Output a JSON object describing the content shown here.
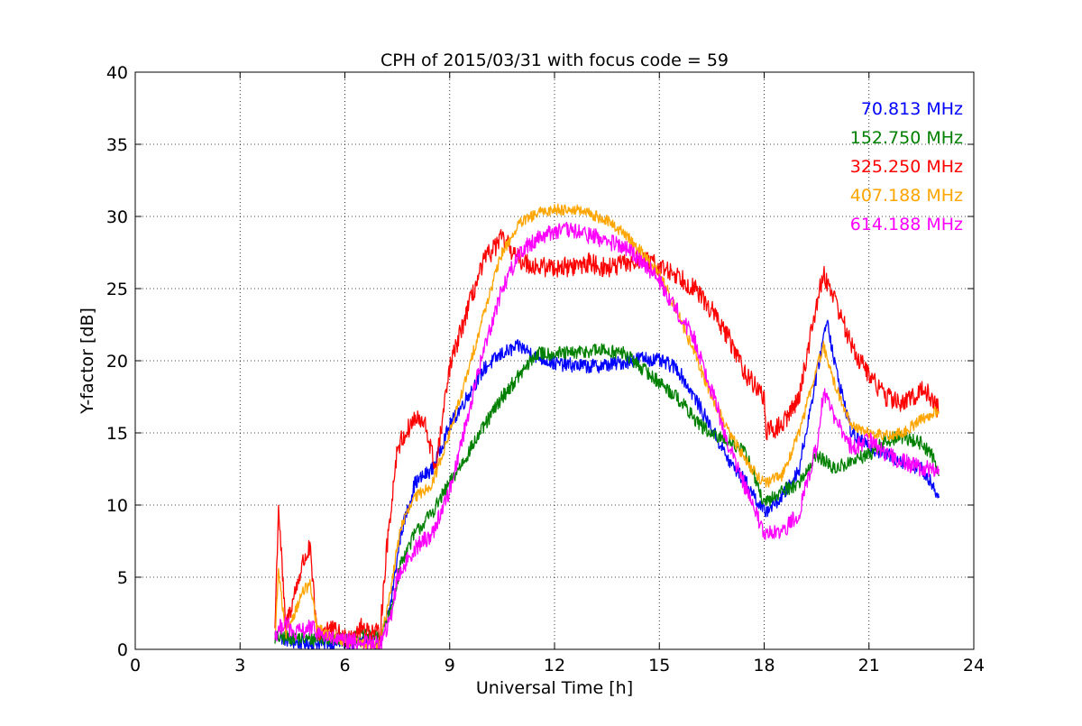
{
  "chart_data": {
    "type": "line",
    "title": "CPH of 2015/03/31 with focus code = 59",
    "xlabel": "Universal Time [h]",
    "ylabel": "Y-factor [dB]",
    "xlim": [
      0,
      24
    ],
    "ylim": [
      0,
      40
    ],
    "xticks": [
      0,
      3,
      6,
      9,
      12,
      15,
      18,
      21,
      24
    ],
    "yticks": [
      0,
      5,
      10,
      15,
      20,
      25,
      30,
      35,
      40
    ],
    "xtick_labels": [
      "0",
      "3",
      "6",
      "9",
      "12",
      "15",
      "18",
      "21",
      "24"
    ],
    "ytick_labels": [
      "0",
      "5",
      "10",
      "15",
      "20",
      "25",
      "30",
      "35",
      "40"
    ],
    "grid": true,
    "legend_position": "top-right",
    "series": [
      {
        "name": "70.813 MHz",
        "color": "#0000ff",
        "noise": 0.5,
        "points": [
          [
            4.0,
            1.0
          ],
          [
            4.5,
            0.5
          ],
          [
            5.0,
            0.4
          ],
          [
            5.5,
            0.5
          ],
          [
            6.0,
            0.4
          ],
          [
            6.5,
            0.6
          ],
          [
            7.0,
            0.3
          ],
          [
            7.3,
            3.0
          ],
          [
            7.6,
            8.0
          ],
          [
            8.0,
            11.5
          ],
          [
            8.5,
            12.5
          ],
          [
            9.0,
            15.5
          ],
          [
            9.5,
            17.5
          ],
          [
            10.0,
            19.5
          ],
          [
            10.5,
            20.5
          ],
          [
            11.0,
            21.0
          ],
          [
            11.5,
            20.3
          ],
          [
            12.0,
            19.8
          ],
          [
            12.5,
            19.7
          ],
          [
            13.0,
            19.6
          ],
          [
            13.5,
            19.7
          ],
          [
            14.0,
            19.9
          ],
          [
            14.5,
            20.2
          ],
          [
            15.0,
            20.0
          ],
          [
            15.5,
            19.5
          ],
          [
            16.0,
            17.5
          ],
          [
            16.5,
            15.3
          ],
          [
            17.0,
            13.0
          ],
          [
            17.5,
            11.5
          ],
          [
            18.0,
            9.5
          ],
          [
            18.5,
            10.5
          ],
          [
            19.0,
            12.5
          ],
          [
            19.5,
            19.0
          ],
          [
            19.8,
            23.0
          ],
          [
            20.0,
            20.0
          ],
          [
            20.5,
            15.0
          ],
          [
            21.0,
            14.0
          ],
          [
            21.5,
            13.5
          ],
          [
            22.0,
            13.0
          ],
          [
            22.5,
            12.5
          ],
          [
            22.8,
            11.5
          ],
          [
            23.0,
            10.5
          ]
        ]
      },
      {
        "name": "152.750 MHz",
        "color": "#008000",
        "noise": 0.5,
        "points": [
          [
            4.0,
            0.8
          ],
          [
            4.5,
            0.8
          ],
          [
            5.0,
            0.7
          ],
          [
            5.5,
            0.8
          ],
          [
            6.0,
            0.6
          ],
          [
            6.5,
            0.9
          ],
          [
            7.0,
            0.8
          ],
          [
            7.3,
            2.5
          ],
          [
            7.6,
            6.0
          ],
          [
            8.0,
            8.0
          ],
          [
            8.5,
            9.5
          ],
          [
            9.0,
            11.5
          ],
          [
            9.5,
            13.5
          ],
          [
            10.0,
            15.5
          ],
          [
            10.5,
            17.5
          ],
          [
            11.0,
            19.0
          ],
          [
            11.5,
            20.5
          ],
          [
            12.0,
            20.5
          ],
          [
            12.5,
            20.5
          ],
          [
            13.0,
            20.7
          ],
          [
            13.5,
            20.7
          ],
          [
            14.0,
            20.5
          ],
          [
            14.5,
            19.5
          ],
          [
            15.0,
            18.5
          ],
          [
            15.5,
            17.5
          ],
          [
            16.0,
            16.0
          ],
          [
            16.5,
            14.8
          ],
          [
            17.0,
            14.5
          ],
          [
            17.5,
            13.5
          ],
          [
            18.0,
            10.0
          ],
          [
            18.5,
            11.0
          ],
          [
            19.0,
            11.5
          ],
          [
            19.5,
            13.5
          ],
          [
            20.0,
            12.5
          ],
          [
            20.5,
            13.0
          ],
          [
            21.0,
            13.5
          ],
          [
            21.5,
            14.5
          ],
          [
            22.0,
            14.7
          ],
          [
            22.5,
            14.3
          ],
          [
            22.8,
            13.5
          ],
          [
            23.0,
            12.0
          ]
        ]
      },
      {
        "name": "325.250 MHz",
        "color": "#ff0000",
        "noise": 0.7,
        "points": [
          [
            4.0,
            1.5
          ],
          [
            4.1,
            10.0
          ],
          [
            4.3,
            1.5
          ],
          [
            4.8,
            6.0
          ],
          [
            5.0,
            7.0
          ],
          [
            5.2,
            1.0
          ],
          [
            5.5,
            1.5
          ],
          [
            6.0,
            0.8
          ],
          [
            6.5,
            1.5
          ],
          [
            7.0,
            1.0
          ],
          [
            7.2,
            7.0
          ],
          [
            7.5,
            14.0
          ],
          [
            8.0,
            16.0
          ],
          [
            8.3,
            15.5
          ],
          [
            8.6,
            12.5
          ],
          [
            9.0,
            19.5
          ],
          [
            9.5,
            23.5
          ],
          [
            10.0,
            27.0
          ],
          [
            10.5,
            28.5
          ],
          [
            11.0,
            27.0
          ],
          [
            11.5,
            26.5
          ],
          [
            12.0,
            26.5
          ],
          [
            12.5,
            26.5
          ],
          [
            13.0,
            26.8
          ],
          [
            13.5,
            26.4
          ],
          [
            14.0,
            26.7
          ],
          [
            14.5,
            27.0
          ],
          [
            15.0,
            26.5
          ],
          [
            15.5,
            26.0
          ],
          [
            16.0,
            25.0
          ],
          [
            16.5,
            23.5
          ],
          [
            17.0,
            21.5
          ],
          [
            17.5,
            19.0
          ],
          [
            18.0,
            17.5
          ],
          [
            18.05,
            15.0
          ],
          [
            18.5,
            15.5
          ],
          [
            19.0,
            17.5
          ],
          [
            19.5,
            24.0
          ],
          [
            19.7,
            26.0
          ],
          [
            20.0,
            24.5
          ],
          [
            20.5,
            21.0
          ],
          [
            21.0,
            19.0
          ],
          [
            21.5,
            17.5
          ],
          [
            22.0,
            17.0
          ],
          [
            22.5,
            18.0
          ],
          [
            22.8,
            17.5
          ],
          [
            23.0,
            16.5
          ]
        ]
      },
      {
        "name": "407.188 MHz",
        "color": "#ffa500",
        "noise": 0.4,
        "points": [
          [
            4.0,
            0.8
          ],
          [
            4.1,
            5.5
          ],
          [
            4.3,
            1.0
          ],
          [
            4.8,
            4.0
          ],
          [
            5.0,
            4.5
          ],
          [
            5.2,
            1.5
          ],
          [
            5.5,
            1.0
          ],
          [
            6.0,
            0.6
          ],
          [
            6.5,
            0.4
          ],
          [
            7.0,
            0.2
          ],
          [
            7.3,
            4.0
          ],
          [
            7.6,
            8.5
          ],
          [
            8.0,
            10.5
          ],
          [
            8.5,
            11.5
          ],
          [
            9.0,
            15.0
          ],
          [
            9.5,
            19.0
          ],
          [
            10.0,
            23.5
          ],
          [
            10.5,
            27.5
          ],
          [
            11.0,
            29.5
          ],
          [
            11.5,
            30.2
          ],
          [
            12.0,
            30.5
          ],
          [
            12.5,
            30.5
          ],
          [
            13.0,
            30.2
          ],
          [
            13.5,
            29.7
          ],
          [
            14.0,
            28.8
          ],
          [
            14.5,
            27.5
          ],
          [
            15.0,
            26.0
          ],
          [
            15.5,
            23.5
          ],
          [
            16.0,
            20.5
          ],
          [
            16.5,
            17.5
          ],
          [
            17.0,
            15.0
          ],
          [
            17.5,
            13.0
          ],
          [
            18.0,
            11.5
          ],
          [
            18.5,
            12.0
          ],
          [
            19.0,
            15.0
          ],
          [
            19.5,
            19.5
          ],
          [
            19.7,
            21.0
          ],
          [
            20.0,
            18.5
          ],
          [
            20.5,
            15.5
          ],
          [
            21.0,
            15.0
          ],
          [
            21.5,
            14.8
          ],
          [
            22.0,
            15.0
          ],
          [
            22.5,
            16.0
          ],
          [
            23.0,
            16.5
          ]
        ]
      },
      {
        "name": "614.188 MHz",
        "color": "#ff00ff",
        "noise": 0.6,
        "points": [
          [
            4.0,
            1.0
          ],
          [
            4.3,
            2.0
          ],
          [
            4.5,
            1.0
          ],
          [
            5.0,
            1.5
          ],
          [
            5.5,
            0.8
          ],
          [
            6.0,
            0.5
          ],
          [
            6.5,
            0.5
          ],
          [
            7.0,
            0.3
          ],
          [
            7.3,
            2.0
          ],
          [
            7.5,
            5.0
          ],
          [
            8.0,
            7.0
          ],
          [
            8.5,
            8.0
          ],
          [
            9.0,
            11.0
          ],
          [
            9.5,
            16.0
          ],
          [
            10.0,
            21.0
          ],
          [
            10.5,
            25.0
          ],
          [
            11.0,
            27.5
          ],
          [
            11.5,
            28.5
          ],
          [
            12.0,
            29.0
          ],
          [
            12.5,
            29.0
          ],
          [
            13.0,
            28.7
          ],
          [
            13.5,
            28.3
          ],
          [
            14.0,
            27.8
          ],
          [
            14.5,
            27.0
          ],
          [
            15.0,
            25.5
          ],
          [
            15.5,
            23.5
          ],
          [
            16.0,
            21.5
          ],
          [
            16.5,
            18.0
          ],
          [
            17.0,
            14.0
          ],
          [
            17.5,
            11.0
          ],
          [
            18.0,
            8.0
          ],
          [
            18.5,
            8.0
          ],
          [
            19.0,
            9.5
          ],
          [
            19.5,
            14.0
          ],
          [
            19.7,
            18.0
          ],
          [
            20.0,
            16.0
          ],
          [
            20.5,
            14.0
          ],
          [
            21.0,
            14.5
          ],
          [
            21.5,
            13.5
          ],
          [
            22.0,
            13.0
          ],
          [
            22.5,
            12.5
          ],
          [
            23.0,
            12.5
          ]
        ]
      }
    ]
  }
}
